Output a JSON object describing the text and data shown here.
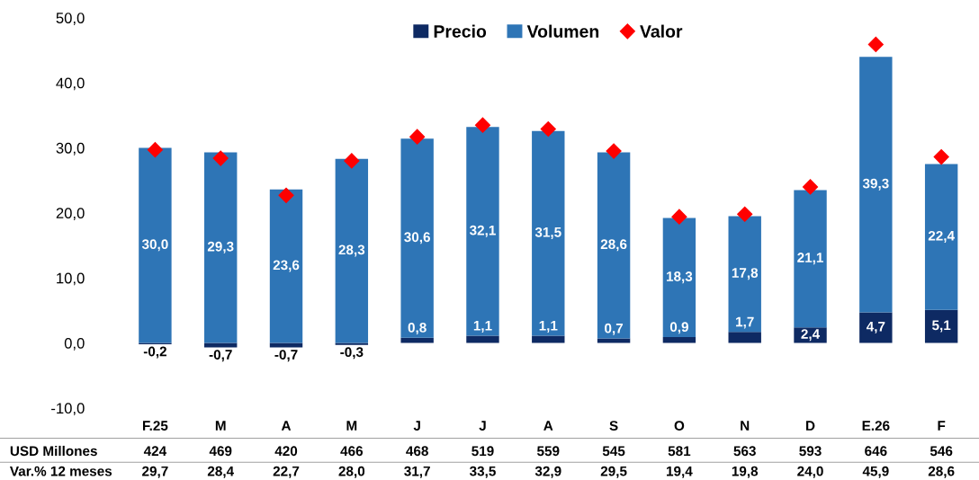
{
  "chart_data": {
    "type": "bar",
    "stacked": true,
    "categories": [
      "F.25",
      "M",
      "A",
      "M",
      "J",
      "J",
      "A",
      "S",
      "O",
      "N",
      "D",
      "E.26",
      "F"
    ],
    "series": [
      {
        "name": "Precio",
        "color": "#0e2a63",
        "values": [
          -0.2,
          -0.7,
          -0.7,
          -0.3,
          0.8,
          1.1,
          1.1,
          0.7,
          0.9,
          1.7,
          2.4,
          4.7,
          5.1
        ],
        "value_labels": [
          "-0,2",
          "-0,7",
          "-0,7",
          "-0,3",
          "0,8",
          "1,1",
          "1,1",
          "0,7",
          "0,9",
          "1,7",
          "2,4",
          "4,7",
          "5,1"
        ]
      },
      {
        "name": "Volumen",
        "color": "#2e75b6",
        "values": [
          30.0,
          29.3,
          23.6,
          28.3,
          30.6,
          32.1,
          31.5,
          28.6,
          18.3,
          17.8,
          21.1,
          39.3,
          22.4
        ],
        "value_labels": [
          "30,0",
          "29,3",
          "23,6",
          "28,3",
          "30,6",
          "32,1",
          "31,5",
          "28,6",
          "18,3",
          "17,8",
          "21,1",
          "39,3",
          "22,4"
        ]
      },
      {
        "name": "Valor",
        "type": "scatter",
        "marker": "diamond",
        "color": "#ff0000",
        "values": [
          29.7,
          28.4,
          22.7,
          28.0,
          31.7,
          33.5,
          32.9,
          29.5,
          19.4,
          19.8,
          24.0,
          45.9,
          28.6
        ],
        "value_labels": [
          "29,7",
          "28,4",
          "22,7",
          "28,0",
          "31,7",
          "33,5",
          "32,9",
          "29,5",
          "19,4",
          "19,8",
          "24,0",
          "45,9",
          "28,6"
        ]
      }
    ],
    "ylim": [
      -10,
      50
    ],
    "yticks": [
      {
        "value": -10,
        "label": "-10,0"
      },
      {
        "value": 0,
        "label": "0,0"
      },
      {
        "value": 10,
        "label": "10,0"
      },
      {
        "value": 20,
        "label": "20,0"
      },
      {
        "value": 30,
        "label": "30,0"
      },
      {
        "value": 40,
        "label": "40,0"
      },
      {
        "value": 50,
        "label": "50,0"
      }
    ],
    "legend": "top",
    "annotations": [
      "USD Millones",
      "424",
      "469",
      "420",
      "466",
      "468",
      "519",
      "559",
      "545",
      "581",
      "563",
      "593",
      "646",
      "546",
      "Var.% 12 meses"
    ]
  }
}
